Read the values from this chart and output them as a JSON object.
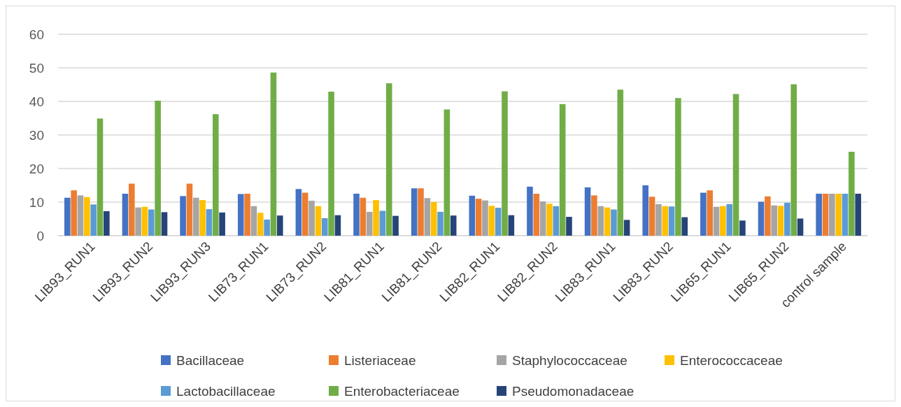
{
  "chart_data": {
    "type": "bar",
    "categories": [
      "LIB93_RUN1",
      "LIB93_RUN2",
      "LIB93_RUN3",
      "LIB73_RUN1",
      "LIB73_RUN2",
      "LIB81_RUN1",
      "LIB81_RUN2",
      "LIB82_RUN1",
      "LIB82_RUN2",
      "LIB83_RUN1",
      "LIB83_RUN2",
      "LIB65_RUN1",
      "LIB65_RUN2",
      "control sample"
    ],
    "series": [
      {
        "name": "Bacillaceae",
        "color": "#4472c4",
        "values": [
          11.3,
          12.5,
          11.8,
          12.4,
          13.9,
          12.5,
          14.1,
          11.9,
          14.6,
          14.4,
          15,
          12.8,
          10.1,
          12.5
        ]
      },
      {
        "name": "Listeriaceae",
        "color": "#ed7d31",
        "values": [
          13.5,
          15.5,
          15.5,
          12.5,
          12.8,
          11.3,
          14.1,
          11,
          12.5,
          12,
          11.6,
          13.5,
          11.7,
          12.5
        ]
      },
      {
        "name": "Staphylococcaceae",
        "color": "#a5a5a5",
        "values": [
          12,
          8.4,
          11.3,
          8.8,
          10.4,
          7.1,
          11.2,
          10.5,
          10.2,
          8.8,
          9.4,
          8.6,
          9,
          12.5
        ]
      },
      {
        "name": "Enterococcaceae",
        "color": "#ffc000",
        "values": [
          11.5,
          8.6,
          10.6,
          6.8,
          8.8,
          10.6,
          10,
          8.9,
          9.5,
          8.4,
          8.8,
          8.8,
          8.9,
          12.5
        ]
      },
      {
        "name": "Lactobacillaceae",
        "color": "#5b9bd5",
        "values": [
          9.3,
          7.8,
          7.9,
          4.8,
          5.2,
          7.4,
          7.1,
          8.3,
          8.8,
          7.8,
          8.7,
          9.4,
          9.8,
          12.5
        ]
      },
      {
        "name": "Enterobacteriaceae",
        "color": "#70ad47",
        "values": [
          34.9,
          40.2,
          36.2,
          48.6,
          42.9,
          45.4,
          37.6,
          43,
          39.2,
          43.5,
          41,
          42.2,
          45.1,
          25
        ]
      },
      {
        "name": "Pseudomonadaceae",
        "color": "#264478",
        "values": [
          7.3,
          7,
          6.9,
          6,
          6.1,
          5.9,
          6,
          6.1,
          5.6,
          4.7,
          5.5,
          4.5,
          5.1,
          12.5
        ]
      }
    ],
    "ylim": [
      0,
      60
    ],
    "yticks": [
      0,
      10,
      20,
      30,
      40,
      50,
      60
    ],
    "grid": "y",
    "legend": "bottom"
  }
}
